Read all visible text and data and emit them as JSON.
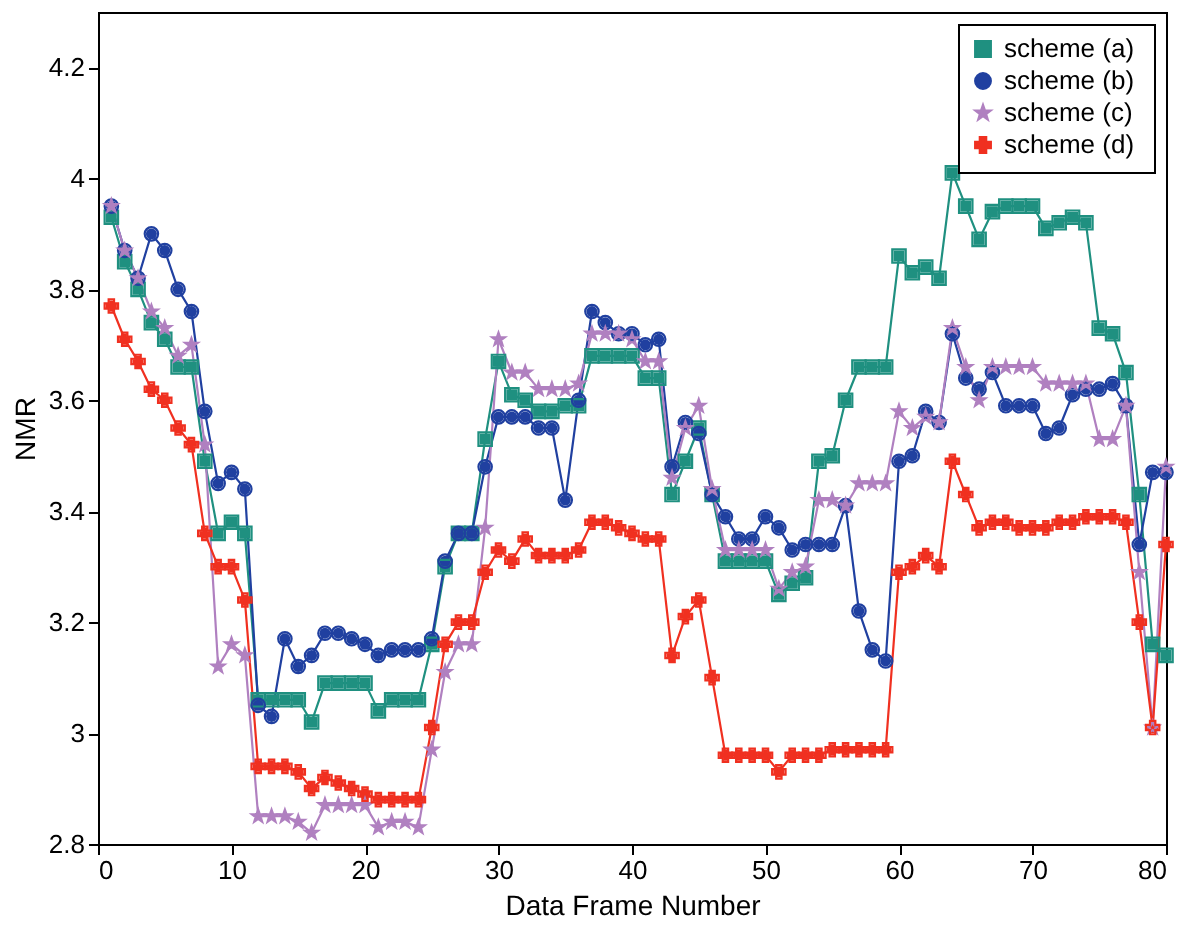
{
  "chart_data": {
    "type": "line",
    "xlabel": "Data Frame Number",
    "ylabel": "NMR",
    "x": [
      1,
      2,
      3,
      4,
      5,
      6,
      7,
      8,
      9,
      10,
      11,
      12,
      13,
      14,
      15,
      16,
      17,
      18,
      19,
      20,
      21,
      22,
      23,
      24,
      25,
      26,
      27,
      28,
      29,
      30,
      31,
      32,
      33,
      34,
      35,
      36,
      37,
      38,
      39,
      40,
      41,
      42,
      43,
      44,
      45,
      46,
      47,
      48,
      49,
      50,
      51,
      52,
      53,
      54,
      55,
      56,
      57,
      58,
      59,
      60,
      61,
      62,
      63,
      64,
      65,
      66,
      67,
      68,
      69,
      70,
      71,
      72,
      73,
      74,
      75,
      76,
      77,
      78,
      79,
      80
    ],
    "series": [
      {
        "name": "scheme  (a)",
        "color": "#1f9080",
        "marker": "square",
        "values": [
          3.93,
          3.85,
          3.8,
          3.74,
          3.71,
          3.66,
          3.66,
          3.49,
          3.36,
          3.38,
          3.36,
          3.06,
          3.06,
          3.06,
          3.06,
          3.02,
          3.09,
          3.09,
          3.09,
          3.09,
          3.04,
          3.06,
          3.06,
          3.06,
          3.16,
          3.3,
          3.36,
          3.36,
          3.53,
          3.67,
          3.61,
          3.6,
          3.58,
          3.58,
          3.59,
          3.59,
          3.68,
          3.68,
          3.68,
          3.68,
          3.64,
          3.64,
          3.43,
          3.49,
          3.55,
          3.43,
          3.31,
          3.31,
          3.31,
          3.31,
          3.25,
          3.27,
          3.28,
          3.49,
          3.5,
          3.6,
          3.66,
          3.66,
          3.66,
          3.86,
          3.83,
          3.84,
          3.82,
          4.01,
          3.95,
          3.89,
          3.94,
          3.95,
          3.95,
          3.95,
          3.91,
          3.92,
          3.93,
          3.92,
          3.73,
          3.72,
          3.65,
          3.43,
          3.16,
          3.14
        ]
      },
      {
        "name": "scheme  (b)",
        "color": "#2040a0",
        "marker": "circle",
        "values": [
          3.95,
          3.87,
          3.82,
          3.9,
          3.87,
          3.8,
          3.76,
          3.58,
          3.45,
          3.47,
          3.44,
          3.05,
          3.03,
          3.17,
          3.12,
          3.14,
          3.18,
          3.18,
          3.17,
          3.16,
          3.14,
          3.15,
          3.15,
          3.15,
          3.17,
          3.31,
          3.36,
          3.36,
          3.48,
          3.57,
          3.57,
          3.57,
          3.55,
          3.55,
          3.42,
          3.6,
          3.76,
          3.74,
          3.72,
          3.72,
          3.7,
          3.71,
          3.48,
          3.56,
          3.54,
          3.43,
          3.39,
          3.35,
          3.35,
          3.39,
          3.37,
          3.33,
          3.34,
          3.34,
          3.34,
          3.41,
          3.22,
          3.15,
          3.13,
          3.49,
          3.5,
          3.58,
          3.56,
          3.72,
          3.64,
          3.62,
          3.65,
          3.59,
          3.59,
          3.59,
          3.54,
          3.55,
          3.61,
          3.62,
          3.62,
          3.63,
          3.59,
          3.34,
          3.47,
          3.47
        ]
      },
      {
        "name": "scheme  (c)",
        "color": "#b080c0",
        "marker": "star",
        "values": [
          3.95,
          3.87,
          3.82,
          3.76,
          3.73,
          3.68,
          3.7,
          3.52,
          3.12,
          3.16,
          3.14,
          2.85,
          2.85,
          2.85,
          2.84,
          2.82,
          2.87,
          2.87,
          2.87,
          2.87,
          2.83,
          2.84,
          2.84,
          2.83,
          2.97,
          3.11,
          3.16,
          3.16,
          3.37,
          3.71,
          3.65,
          3.65,
          3.62,
          3.62,
          3.62,
          3.63,
          3.72,
          3.72,
          3.72,
          3.71,
          3.67,
          3.67,
          3.46,
          3.55,
          3.59,
          3.44,
          3.33,
          3.33,
          3.33,
          3.33,
          3.26,
          3.29,
          3.3,
          3.42,
          3.42,
          3.41,
          3.45,
          3.45,
          3.45,
          3.58,
          3.55,
          3.57,
          3.56,
          3.73,
          3.66,
          3.6,
          3.66,
          3.66,
          3.66,
          3.66,
          3.63,
          3.63,
          3.63,
          3.63,
          3.53,
          3.53,
          3.59,
          3.29,
          3.01,
          3.48
        ]
      },
      {
        "name": "scheme  (d)",
        "color": "#f03020",
        "marker": "cross",
        "values": [
          3.77,
          3.71,
          3.67,
          3.62,
          3.6,
          3.55,
          3.52,
          3.36,
          3.3,
          3.3,
          3.24,
          2.94,
          2.94,
          2.94,
          2.93,
          2.9,
          2.92,
          2.91,
          2.9,
          2.89,
          2.88,
          2.88,
          2.88,
          2.88,
          3.01,
          3.16,
          3.2,
          3.2,
          3.29,
          3.33,
          3.31,
          3.35,
          3.32,
          3.32,
          3.32,
          3.33,
          3.38,
          3.38,
          3.37,
          3.36,
          3.35,
          3.35,
          3.14,
          3.21,
          3.24,
          3.1,
          2.96,
          2.96,
          2.96,
          2.96,
          2.93,
          2.96,
          2.96,
          2.96,
          2.97,
          2.97,
          2.97,
          2.97,
          2.97,
          3.29,
          3.3,
          3.32,
          3.3,
          3.49,
          3.43,
          3.37,
          3.38,
          3.38,
          3.37,
          3.37,
          3.37,
          3.38,
          3.38,
          3.39,
          3.39,
          3.39,
          3.38,
          3.2,
          3.01,
          3.34
        ]
      }
    ],
    "xlim": [
      0,
      80
    ],
    "xticks": [
      0,
      10,
      20,
      30,
      40,
      50,
      60,
      70,
      80
    ],
    "ylim": [
      2.8,
      4.3
    ],
    "yticks": [
      2.8,
      3,
      3.2,
      3.4,
      3.6,
      3.8,
      4,
      4.2
    ],
    "grid": false,
    "legend": "top right",
    "line_style": "solid"
  }
}
